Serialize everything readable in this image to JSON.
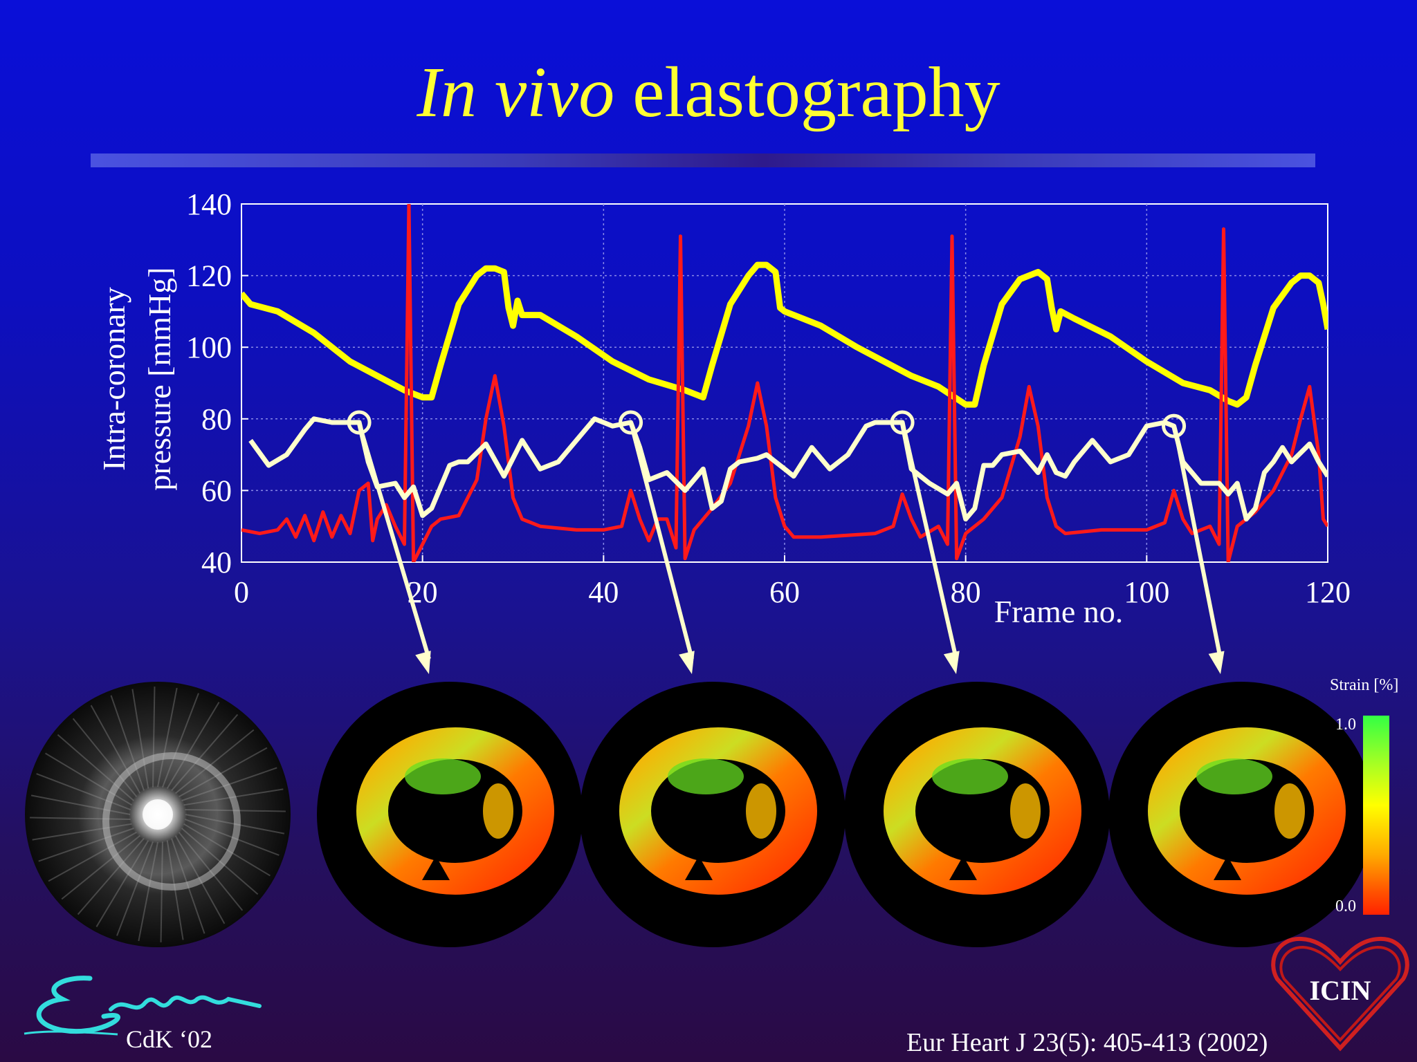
{
  "slide": {
    "title_italic": "In vivo",
    "title_rest": " elastography",
    "citation": "Eur Heart J 23(5): 405-413 (2002)",
    "author_tag": "CdK ‘02",
    "logo_text": "ICIN",
    "colors": {
      "title": "#ffff33",
      "background_top": "#0a0fd8",
      "background_bottom": "#2a0a44"
    }
  },
  "colorbar": {
    "label": "Strain [%]",
    "max_label": "1.0",
    "min_label": "0.0"
  },
  "images": {
    "ivus_echogram": "grayscale intravascular ultrasound cross-section",
    "elastograms": [
      "elastogram-frame-13",
      "elastogram-frame-43",
      "elastogram-frame-73",
      "elastogram-frame-103"
    ]
  },
  "chart_data": {
    "type": "line",
    "title": "",
    "xlabel": "Frame no.",
    "ylabel_line1": "Intra-coronary",
    "ylabel_line2": "pressure [mmHg]",
    "xlim": [
      0,
      120
    ],
    "ylim": [
      40,
      140
    ],
    "xticks": [
      0,
      20,
      40,
      60,
      80,
      100,
      120
    ],
    "yticks": [
      40,
      60,
      80,
      100,
      120,
      140
    ],
    "grid": true,
    "markers_x": [
      13,
      43,
      73,
      103
    ],
    "series": [
      {
        "color": "#ffff00",
        "points": [
          [
            0,
            115
          ],
          [
            1,
            112
          ],
          [
            4,
            110
          ],
          [
            8,
            104
          ],
          [
            12,
            96
          ],
          [
            15,
            92
          ],
          [
            18,
            88
          ],
          [
            20,
            86
          ],
          [
            21,
            86
          ],
          [
            22,
            95
          ],
          [
            24,
            112
          ],
          [
            26,
            120
          ],
          [
            27,
            122
          ],
          [
            28,
            122
          ],
          [
            29,
            121
          ],
          [
            29.5,
            111
          ],
          [
            30,
            106
          ],
          [
            30.5,
            113
          ],
          [
            31,
            109
          ],
          [
            33,
            109
          ],
          [
            37,
            103
          ],
          [
            41,
            96
          ],
          [
            45,
            91
          ],
          [
            49,
            88
          ],
          [
            51,
            86
          ],
          [
            52,
            95
          ],
          [
            54,
            112
          ],
          [
            56,
            120
          ],
          [
            57,
            123
          ],
          [
            58,
            123
          ],
          [
            59,
            121
          ],
          [
            59.5,
            111
          ],
          [
            60,
            110
          ],
          [
            64,
            106
          ],
          [
            68,
            100
          ],
          [
            71,
            96
          ],
          [
            74,
            92
          ],
          [
            77,
            89
          ],
          [
            80,
            84
          ],
          [
            81,
            84
          ],
          [
            82,
            95
          ],
          [
            84,
            112
          ],
          [
            86,
            119
          ],
          [
            88,
            121
          ],
          [
            89,
            119
          ],
          [
            89.5,
            111
          ],
          [
            90,
            105
          ],
          [
            90.5,
            110
          ],
          [
            92,
            108
          ],
          [
            96,
            103
          ],
          [
            100,
            96
          ],
          [
            104,
            90
          ],
          [
            107,
            88
          ],
          [
            109,
            85
          ],
          [
            110,
            84
          ],
          [
            111,
            86
          ],
          [
            112,
            95
          ],
          [
            114,
            111
          ],
          [
            116,
            118
          ],
          [
            117,
            120
          ],
          [
            118,
            120
          ],
          [
            119,
            118
          ],
          [
            119.5,
            112
          ],
          [
            120,
            105
          ]
        ]
      },
      {
        "color": "#ff1a1a",
        "points": [
          [
            0,
            49
          ],
          [
            2,
            48
          ],
          [
            4,
            49
          ],
          [
            5,
            52
          ],
          [
            6,
            47
          ],
          [
            7,
            53
          ],
          [
            8,
            46
          ],
          [
            9,
            54
          ],
          [
            10,
            47
          ],
          [
            11,
            53
          ],
          [
            12,
            48
          ],
          [
            13,
            60
          ],
          [
            14,
            62
          ],
          [
            14.5,
            46
          ],
          [
            15,
            52
          ],
          [
            16,
            56
          ],
          [
            17,
            50
          ],
          [
            18,
            45
          ],
          [
            18.5,
            140
          ],
          [
            19,
            40
          ],
          [
            20,
            45
          ],
          [
            21,
            50
          ],
          [
            22,
            52
          ],
          [
            24,
            53
          ],
          [
            26,
            63
          ],
          [
            27,
            80
          ],
          [
            28,
            92
          ],
          [
            29,
            78
          ],
          [
            30,
            58
          ],
          [
            31,
            52
          ],
          [
            33,
            50
          ],
          [
            37,
            49
          ],
          [
            40,
            49
          ],
          [
            42,
            50
          ],
          [
            43,
            60
          ],
          [
            44,
            52
          ],
          [
            45,
            46
          ],
          [
            46,
            52
          ],
          [
            47,
            52
          ],
          [
            48,
            44
          ],
          [
            48.5,
            131
          ],
          [
            49,
            41
          ],
          [
            50,
            49
          ],
          [
            52,
            55
          ],
          [
            54,
            62
          ],
          [
            56,
            78
          ],
          [
            57,
            90
          ],
          [
            58,
            78
          ],
          [
            59,
            58
          ],
          [
            60,
            50
          ],
          [
            61,
            47
          ],
          [
            64,
            47
          ],
          [
            70,
            48
          ],
          [
            72,
            50
          ],
          [
            73,
            59
          ],
          [
            74,
            52
          ],
          [
            75,
            47
          ],
          [
            77,
            50
          ],
          [
            78,
            45
          ],
          [
            78.5,
            131
          ],
          [
            79,
            41
          ],
          [
            80,
            48
          ],
          [
            82,
            52
          ],
          [
            84,
            58
          ],
          [
            86,
            75
          ],
          [
            87,
            89
          ],
          [
            88,
            78
          ],
          [
            89,
            58
          ],
          [
            90,
            50
          ],
          [
            91,
            48
          ],
          [
            95,
            49
          ],
          [
            100,
            49
          ],
          [
            102,
            51
          ],
          [
            103,
            60
          ],
          [
            104,
            52
          ],
          [
            105,
            48
          ],
          [
            107,
            50
          ],
          [
            108,
            45
          ],
          [
            108.5,
            133
          ],
          [
            109,
            40
          ],
          [
            110,
            50
          ],
          [
            112,
            54
          ],
          [
            114,
            60
          ],
          [
            116,
            70
          ],
          [
            117,
            80
          ],
          [
            118,
            89
          ],
          [
            119,
            70
          ],
          [
            119.5,
            52
          ],
          [
            120,
            50
          ]
        ]
      },
      {
        "color": "#ffffcc",
        "points": [
          [
            1,
            74
          ],
          [
            3,
            67
          ],
          [
            5,
            70
          ],
          [
            7,
            77
          ],
          [
            8,
            80
          ],
          [
            10,
            79
          ],
          [
            12,
            79
          ],
          [
            13,
            79
          ],
          [
            14,
            68
          ],
          [
            15,
            61
          ],
          [
            17,
            62
          ],
          [
            18,
            58
          ],
          [
            19,
            61
          ],
          [
            20,
            53
          ],
          [
            21,
            55
          ],
          [
            23,
            67
          ],
          [
            24,
            68
          ],
          [
            25,
            68
          ],
          [
            27,
            73
          ],
          [
            29,
            64
          ],
          [
            31,
            74
          ],
          [
            33,
            66
          ],
          [
            35,
            68
          ],
          [
            37,
            74
          ],
          [
            39,
            80
          ],
          [
            41,
            78
          ],
          [
            43,
            79
          ],
          [
            44,
            72
          ],
          [
            45,
            63
          ],
          [
            47,
            65
          ],
          [
            49,
            60
          ],
          [
            51,
            66
          ],
          [
            52,
            55
          ],
          [
            53,
            57
          ],
          [
            54,
            66
          ],
          [
            55,
            68
          ],
          [
            57,
            69
          ],
          [
            58,
            70
          ],
          [
            59,
            68
          ],
          [
            60,
            66
          ],
          [
            61,
            64
          ],
          [
            63,
            72
          ],
          [
            65,
            66
          ],
          [
            67,
            70
          ],
          [
            69,
            78
          ],
          [
            70,
            79
          ],
          [
            72,
            79
          ],
          [
            73,
            79
          ],
          [
            74,
            66
          ],
          [
            76,
            62
          ],
          [
            78,
            59
          ],
          [
            79,
            62
          ],
          [
            80,
            52
          ],
          [
            81,
            55
          ],
          [
            82,
            67
          ],
          [
            83,
            67
          ],
          [
            84,
            70
          ],
          [
            86,
            71
          ],
          [
            88,
            65
          ],
          [
            89,
            70
          ],
          [
            90,
            65
          ],
          [
            91,
            64
          ],
          [
            92,
            68
          ],
          [
            94,
            74
          ],
          [
            96,
            68
          ],
          [
            98,
            70
          ],
          [
            100,
            78
          ],
          [
            102,
            79
          ],
          [
            103,
            78
          ],
          [
            104,
            68
          ],
          [
            106,
            62
          ],
          [
            108,
            62
          ],
          [
            109,
            59
          ],
          [
            110,
            62
          ],
          [
            111,
            52
          ],
          [
            112,
            55
          ],
          [
            113,
            65
          ],
          [
            114,
            68
          ],
          [
            115,
            72
          ],
          [
            116,
            68
          ],
          [
            118,
            73
          ],
          [
            119,
            68
          ],
          [
            120,
            64
          ]
        ]
      }
    ]
  }
}
